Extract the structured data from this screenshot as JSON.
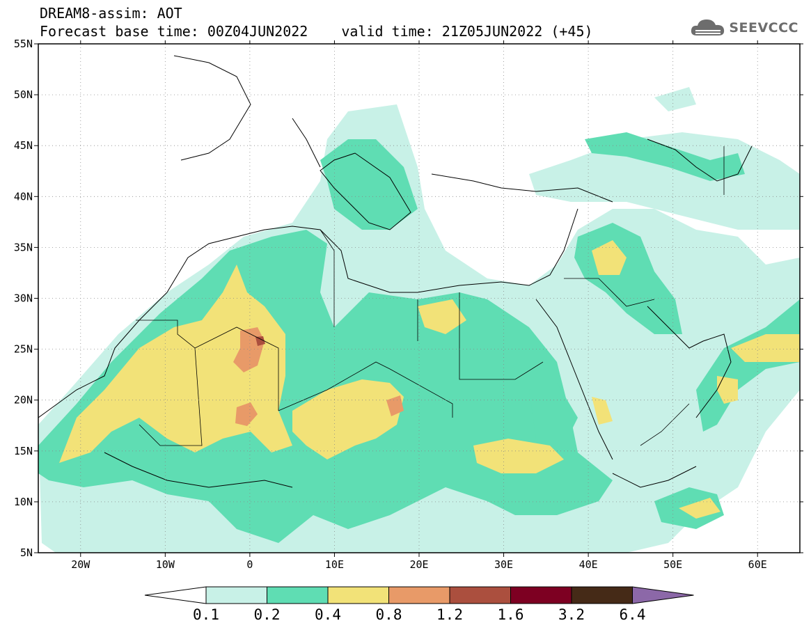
{
  "header": {
    "line1": "DREAM8-assim: AOT",
    "base_time": "Forecast base time: 00Z04JUN2022",
    "valid_time": "valid time: 21Z05JUN2022 (+45)"
  },
  "logo": {
    "text": "SEEVCCC",
    "icon": "cloud-icon",
    "color": "#6d6d6d"
  },
  "map": {
    "lon_range": [
      -25,
      65
    ],
    "lat_range": [
      5,
      55
    ],
    "x_ticks": [
      {
        "lon": -20,
        "label": "20W"
      },
      {
        "lon": -10,
        "label": "10W"
      },
      {
        "lon": 0,
        "label": "0"
      },
      {
        "lon": 10,
        "label": "10E"
      },
      {
        "lon": 20,
        "label": "20E"
      },
      {
        "lon": 30,
        "label": "30E"
      },
      {
        "lon": 40,
        "label": "40E"
      },
      {
        "lon": 50,
        "label": "50E"
      },
      {
        "lon": 60,
        "label": "60E"
      }
    ],
    "y_ticks": [
      {
        "lat": 55,
        "label": "55N"
      },
      {
        "lat": 50,
        "label": "50N"
      },
      {
        "lat": 45,
        "label": "45N"
      },
      {
        "lat": 40,
        "label": "40N"
      },
      {
        "lat": 35,
        "label": "35N"
      },
      {
        "lat": 30,
        "label": "30N"
      },
      {
        "lat": 25,
        "label": "25N"
      },
      {
        "lat": 20,
        "label": "20N"
      },
      {
        "lat": 15,
        "label": "15N"
      },
      {
        "lat": 10,
        "label": "10N"
      },
      {
        "lat": 5,
        "label": "5N"
      }
    ],
    "gridlines": "dotted"
  },
  "colorbar": {
    "labels": [
      "0.1",
      "0.2",
      "0.4",
      "0.8",
      "1.2",
      "1.6",
      "3.2",
      "6.4"
    ],
    "colors": [
      "#ffffff",
      "#c8f1e7",
      "#5fddb3",
      "#f2e278",
      "#e89a68",
      "#ab4f3e",
      "#7d0022",
      "#452a17",
      "#8c68a8"
    ]
  }
}
